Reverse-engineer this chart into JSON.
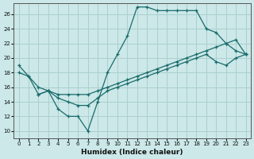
{
  "xlabel": "Humidex (Indice chaleur)",
  "bg_color": "#cce8e8",
  "grid_color": "#aacfcf",
  "line_color": "#1a6b6b",
  "xlim": [
    -0.5,
    23.5
  ],
  "ylim": [
    9.0,
    27.5
  ],
  "xticks": [
    0,
    1,
    2,
    3,
    4,
    5,
    6,
    7,
    8,
    9,
    10,
    11,
    12,
    13,
    14,
    15,
    16,
    17,
    18,
    19,
    20,
    21,
    22,
    23
  ],
  "yticks": [
    10,
    12,
    14,
    16,
    18,
    20,
    22,
    24,
    26
  ],
  "line_v_x": [
    0,
    1,
    2,
    3,
    4,
    5,
    6,
    7,
    8,
    9,
    10,
    11,
    12,
    13,
    14,
    15,
    16,
    17,
    18,
    19,
    20,
    21,
    22,
    23
  ],
  "line_v_y": [
    19.0,
    17.5,
    15.0,
    15.5,
    13.0,
    12.0,
    12.0,
    10.0,
    14.0,
    18.0,
    20.5,
    23.0,
    27.0,
    27.0,
    26.5,
    26.5,
    26.5,
    26.5,
    26.5,
    24.0,
    23.5,
    22.0,
    21.0,
    20.5
  ],
  "line_mid_x": [
    0,
    1,
    2,
    3,
    4,
    5,
    6,
    7,
    8,
    9,
    10,
    11,
    12,
    13,
    14,
    15,
    16,
    17,
    18,
    19,
    20,
    21,
    22,
    23
  ],
  "line_mid_y": [
    18.0,
    17.5,
    16.0,
    15.5,
    15.0,
    15.0,
    15.0,
    15.0,
    15.5,
    16.0,
    16.5,
    17.0,
    17.5,
    18.0,
    18.5,
    19.0,
    19.5,
    20.0,
    20.5,
    21.0,
    21.5,
    22.0,
    22.5,
    20.5
  ],
  "line_low_x": [
    2,
    3,
    4,
    5,
    6,
    7,
    8,
    9,
    10,
    11,
    12,
    13,
    14,
    15,
    16,
    17,
    18,
    19,
    20,
    21,
    22,
    23
  ],
  "line_low_y": [
    15.0,
    15.5,
    14.5,
    14.0,
    13.5,
    13.5,
    14.5,
    15.5,
    16.0,
    16.5,
    17.0,
    17.5,
    18.0,
    18.5,
    19.0,
    19.5,
    20.0,
    20.5,
    19.5,
    19.0,
    20.0,
    20.5
  ]
}
